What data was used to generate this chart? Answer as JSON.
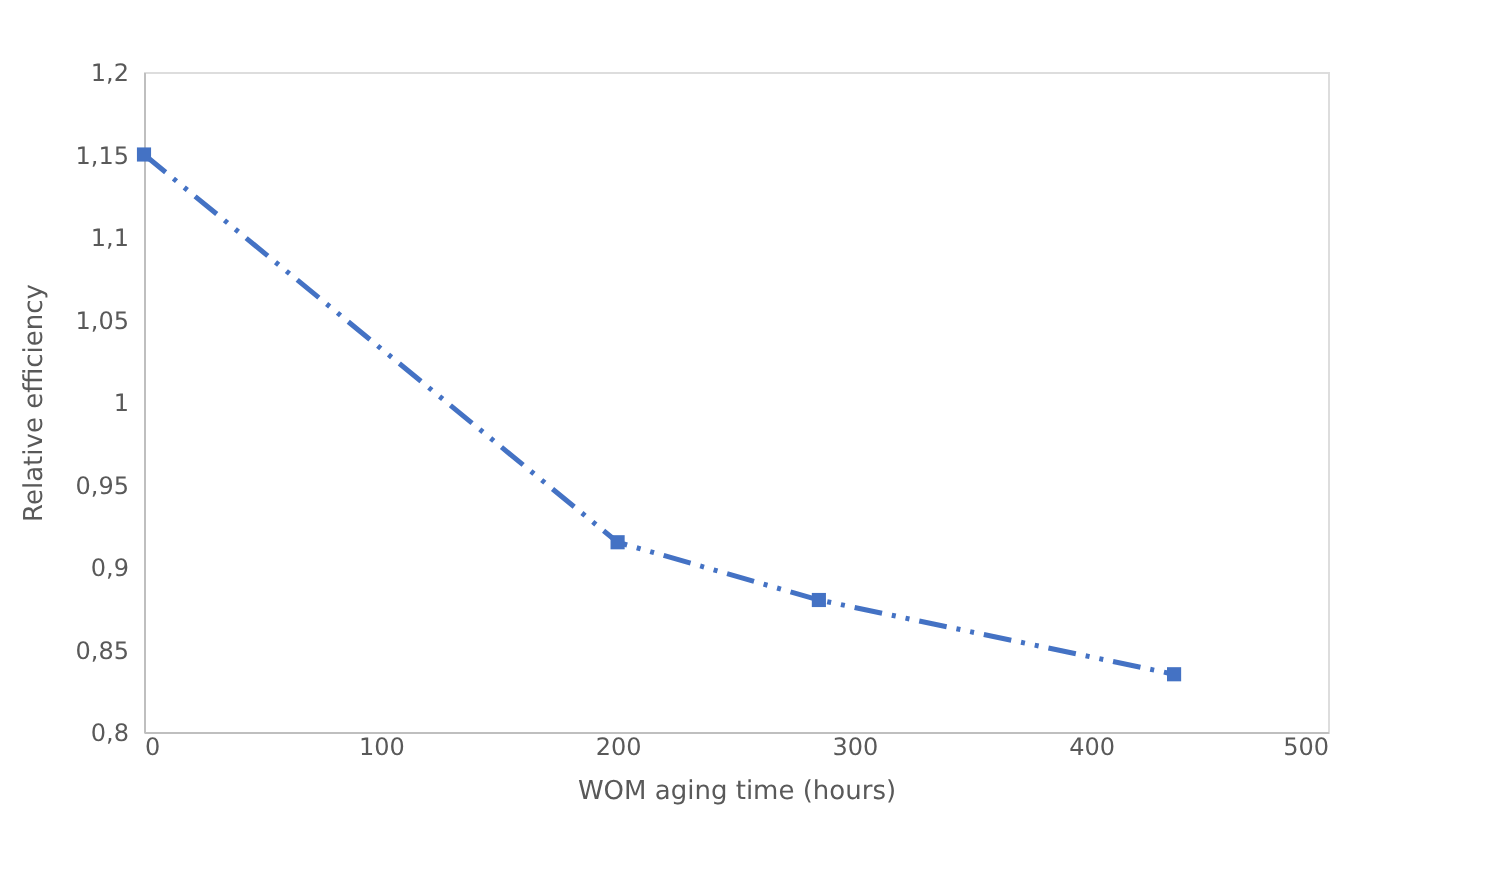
{
  "chart_data": {
    "type": "line",
    "xlabel": "WOM aging time (hours)",
    "ylabel": "Relative efficiency",
    "x": [
      0,
      200,
      285,
      435
    ],
    "series": [
      {
        "color": "#4472c4",
        "values": [
          1.15,
          0.915,
          0.88,
          0.835
        ]
      }
    ],
    "xlim": [
      0,
      500
    ],
    "xticks": [
      0,
      100,
      200,
      300,
      400,
      500
    ],
    "ylim": [
      0.8,
      1.2
    ],
    "yticks": [
      {
        "value": 0.8,
        "label": "0,8"
      },
      {
        "value": 0.85,
        "label": "0,85"
      },
      {
        "value": 0.9,
        "label": "0,9"
      },
      {
        "value": 0.95,
        "label": "0,95"
      },
      1,
      {
        "value": 1.05,
        "label": "1,05"
      },
      {
        "value": 1.1,
        "label": "1,1"
      },
      {
        "value": 1.15,
        "label": "1,15"
      },
      {
        "value": 1.2,
        "label": "1,2"
      }
    ],
    "grid": false,
    "legend": false,
    "marker": "square",
    "line_style": "dashed"
  }
}
